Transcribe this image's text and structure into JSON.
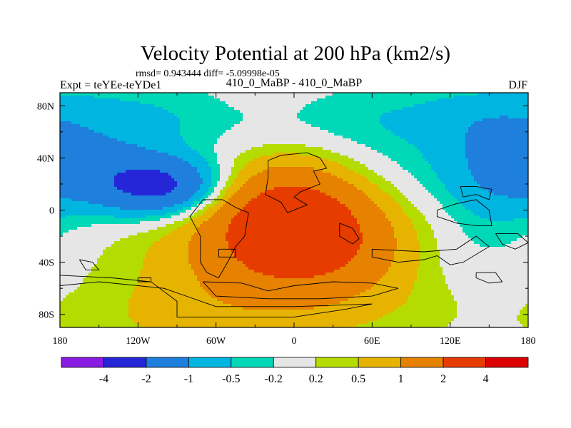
{
  "chart_data": {
    "type": "filled-contour-map",
    "title": "Velocity Potential at 200 hPa (km2/s)",
    "stats_line": "rmsd= 0.943444 diff= -5.09998e-05",
    "experiment_label": "Expt = teYEe-teYDe1",
    "subtitle": "410_0_MaBP - 410_0_MaBP",
    "season": "DJF",
    "x_axis": {
      "range": [
        -180,
        180
      ],
      "ticks": [
        {
          "v": -180,
          "label": "180"
        },
        {
          "v": -120,
          "label": "120W"
        },
        {
          "v": -60,
          "label": "60W"
        },
        {
          "v": 0,
          "label": "0"
        },
        {
          "v": 60,
          "label": "60E"
        },
        {
          "v": 120,
          "label": "120E"
        },
        {
          "v": 180,
          "label": "180"
        }
      ]
    },
    "y_axis": {
      "range": [
        -90,
        90
      ],
      "ticks": [
        {
          "v": 80,
          "label": "80N"
        },
        {
          "v": 40,
          "label": "40N"
        },
        {
          "v": 0,
          "label": "0"
        },
        {
          "v": -40,
          "label": "40S"
        },
        {
          "v": -80,
          "label": "80S"
        }
      ]
    },
    "contour_levels": [
      "-4",
      "-2",
      "-1",
      "-0.5",
      "-0.2",
      "0.2",
      "0.5",
      "1",
      "2",
      "4"
    ],
    "level_values": [
      -4,
      -2,
      -1,
      -0.5,
      -0.2,
      0.2,
      0.5,
      1,
      2,
      4
    ],
    "palette": [
      "#8a1be0",
      "#2626d9",
      "#1e7fdc",
      "#00b5e0",
      "#00d8b8",
      "#e6e6e6",
      "#b5dc00",
      "#e6b400",
      "#e68200",
      "#e63c00",
      "#dc0000"
    ],
    "features": [
      {
        "name": "minimum",
        "lon": -100,
        "lat": 18,
        "value": -2.3
      },
      {
        "name": "maximum",
        "lon": -5,
        "lat": -8,
        "value": 2.6
      },
      {
        "name": "minimum",
        "lon": 155,
        "lat": 28,
        "value": -0.8
      }
    ]
  }
}
